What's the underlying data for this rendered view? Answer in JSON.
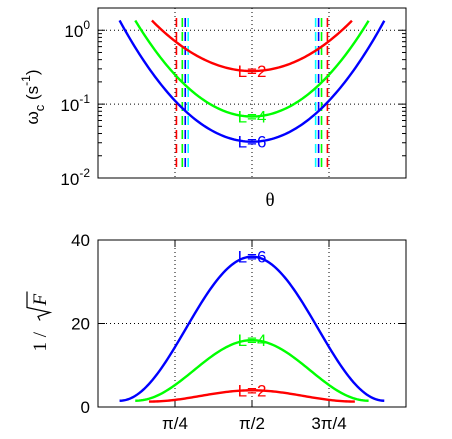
{
  "chart_data": [
    {
      "type": "line",
      "scale_y": "log",
      "ylim": [
        0.01,
        2
      ],
      "xlim": [
        0,
        3.14159
      ],
      "xlabel": "θ",
      "ylabel": "ω",
      "ylabel_sub": "c",
      "ylabel_unit": "(s",
      "ylabel_unit_exp": "-1",
      "ylabel_unit_close": ")",
      "yticks": [
        {
          "value": 1,
          "base": "10",
          "exp": "0"
        },
        {
          "value": 0.1,
          "base": "10",
          "exp": "-1"
        },
        {
          "value": 0.01,
          "base": "10",
          "exp": "-2"
        }
      ],
      "grid": true,
      "grid_x": [
        0.7854,
        1.5708,
        2.3562
      ],
      "series": [
        {
          "name": "L=2",
          "color": "#ff0000",
          "x_range": [
            0.55,
            2.59
          ],
          "y_min": 0.28,
          "y_max": 1.35,
          "label_y": 0.28
        },
        {
          "name": "L=4",
          "color": "#00ff00",
          "x_range": [
            0.38,
            2.76
          ],
          "y_min": 0.068,
          "y_max": 1.35,
          "label_y": 0.068
        },
        {
          "name": "L=6",
          "color": "#0000ff",
          "x_range": [
            0.22,
            2.92
          ],
          "y_min": 0.031,
          "y_max": 1.35,
          "label_y": 0.031
        }
      ],
      "vlines": [
        {
          "x": 0.8,
          "color": "#ff0000"
        },
        {
          "x": 2.34,
          "color": "#ff0000"
        },
        {
          "x": 0.86,
          "color": "#00ff00"
        },
        {
          "x": 2.28,
          "color": "#00ff00"
        },
        {
          "x": 0.89,
          "color": "#0000ff"
        },
        {
          "x": 2.25,
          "color": "#0000ff"
        },
        {
          "x": 0.92,
          "color": "#00ffff"
        },
        {
          "x": 2.22,
          "color": "#00ffff"
        }
      ]
    },
    {
      "type": "line",
      "ylim": [
        0,
        40
      ],
      "xlim": [
        0,
        3.14159
      ],
      "ylabel": "1 / √F",
      "yticks": [
        0,
        20,
        40
      ],
      "xticks": [
        {
          "value": 0.7854,
          "label": "π/4"
        },
        {
          "value": 1.5708,
          "label": "π/2"
        },
        {
          "value": 2.3562,
          "label": "3π/4"
        }
      ],
      "grid": true,
      "series": [
        {
          "name": "L=2",
          "color": "#ff0000",
          "x_range": [
            0.52,
            2.62
          ],
          "peak": 4,
          "min": 1.3
        },
        {
          "name": "L=4",
          "color": "#00ff00",
          "x_range": [
            0.38,
            2.76
          ],
          "peak": 16,
          "min": 1.5
        },
        {
          "name": "L=6",
          "color": "#0000ff",
          "x_range": [
            0.22,
            2.92
          ],
          "peak": 36,
          "min": 1.5
        }
      ]
    }
  ]
}
